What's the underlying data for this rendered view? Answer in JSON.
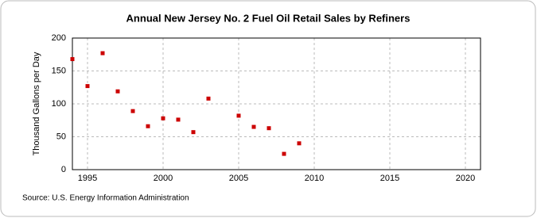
{
  "chart_data": {
    "type": "scatter",
    "title": "Annual New Jersey No. 2 Fuel Oil Retail Sales by Refiners",
    "y_label": "Thousand Gallons per Day",
    "source": "Source: U.S. Energy Information Administration",
    "series": [
      {
        "name": "New Jersey No. 2 Fuel Oil Retail Sales by Refiners",
        "color": "#cc0000",
        "x": [
          1994,
          1995,
          1996,
          1997,
          1998,
          1999,
          2000,
          2001,
          2002,
          2003,
          2005,
          2006,
          2007,
          2008,
          2009
        ],
        "values": [
          168,
          127,
          177,
          119,
          89,
          66,
          78,
          76,
          57,
          108,
          82,
          65,
          63,
          24,
          40
        ]
      }
    ],
    "xlim": [
      1994,
      2021
    ],
    "xticks": [
      1995,
      2000,
      2005,
      2010,
      2015,
      2020
    ],
    "ylim": [
      0,
      200
    ],
    "yticks": [
      0,
      50,
      100,
      150,
      200
    ],
    "grid": true
  }
}
